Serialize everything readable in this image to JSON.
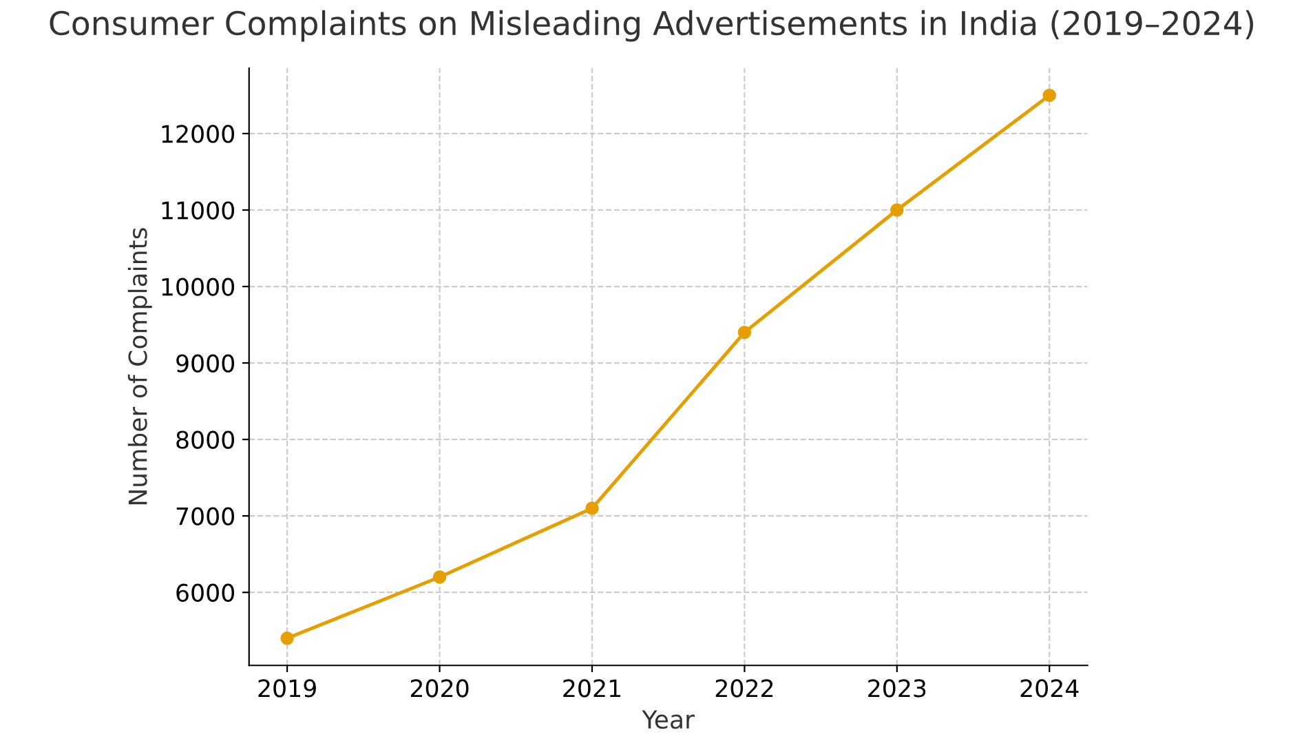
{
  "chart_data": {
    "type": "line",
    "title": "Consumer Complaints on Misleading Advertisements in India (2019–2024)",
    "xlabel": "Year",
    "ylabel": "Number of Complaints",
    "x": [
      2019,
      2020,
      2021,
      2022,
      2023,
      2024
    ],
    "series": [
      {
        "color": "#e69f00",
        "values": [
          5400,
          6200,
          7100,
          9400,
          11000,
          12500
        ]
      }
    ],
    "xlim": [
      2018.75,
      2024.25
    ],
    "xticks": [
      2019,
      2020,
      2021,
      2022,
      2023,
      2024
    ],
    "ylim": [
      5045,
      12855
    ],
    "yticks": [
      6000,
      7000,
      8000,
      9000,
      10000,
      11000,
      12000
    ],
    "grid": true,
    "marker": "circle",
    "line_style": "solid"
  }
}
